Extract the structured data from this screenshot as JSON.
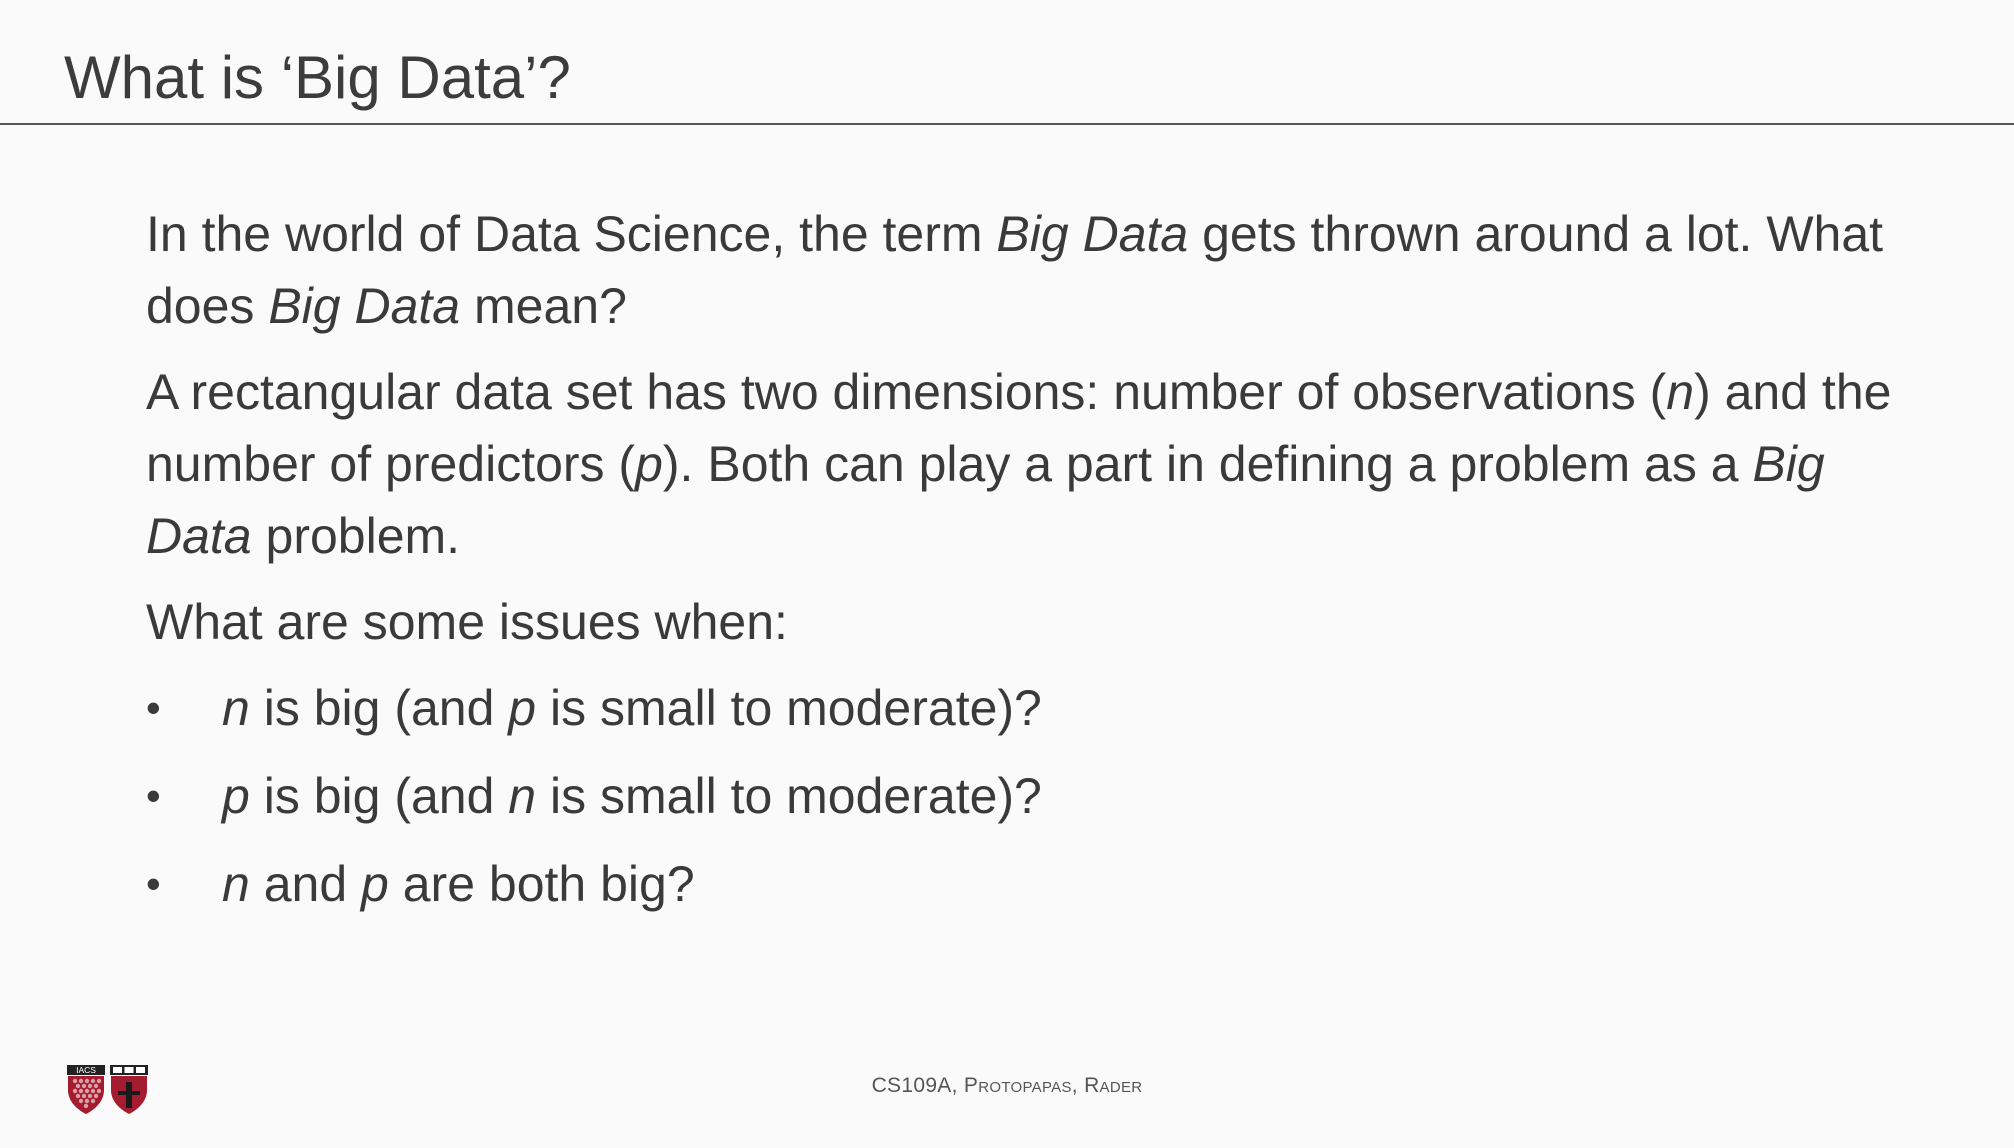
{
  "slide": {
    "title": "What is ‘Big Data’?",
    "para1": {
      "t1": "In the world of Data Science, the term ",
      "em1": "Big Data",
      "t2": " gets thrown around a lot.  What does ",
      "em2": "Big Data",
      "t3": " mean?"
    },
    "para2": {
      "t1": "A rectangular data set has two dimensions: number of observations (",
      "em1": "n",
      "t2": ") and the number of predictors (",
      "em2": "p",
      "t3": "). Both can play a part in defining a problem as a ",
      "em3": "Big Data",
      "t4": " problem."
    },
    "para3": "What are some issues when:",
    "bullet_symbol": "•",
    "bullets": [
      {
        "em1": "n",
        "t1": " is big (and ",
        "em2": "p",
        "t2": " is small to moderate)?"
      },
      {
        "em1": "p",
        "t1": " is big (and ",
        "em2": "n",
        "t2": " is small to moderate)?"
      },
      {
        "em1": "n",
        "t1": " and ",
        "em2": "p",
        "t2": " are both big?"
      }
    ]
  },
  "footer": {
    "course": "CS109A",
    "sep": ", ",
    "author1": "Protopapas",
    "author2": "Rader"
  },
  "logo": {
    "text": "IACS",
    "icon": "iacs-harvard-shield-logo"
  },
  "colors": {
    "background": "#fafafa",
    "text": "#3a3a3a",
    "rule": "#555555",
    "shield_red": "#a51c30"
  }
}
